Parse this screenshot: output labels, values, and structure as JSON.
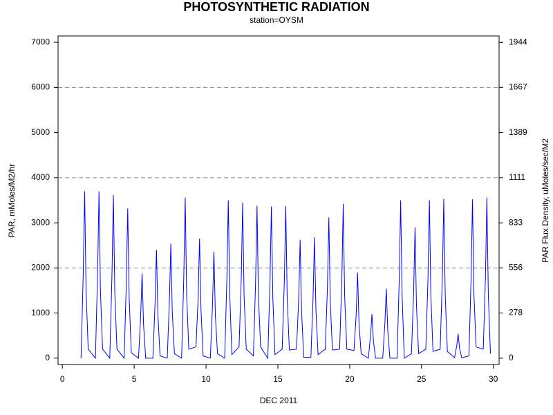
{
  "chart_data": {
    "type": "line",
    "title": "PHOTOSYNTHETIC RADIATION",
    "subtitle": "station=OYSM",
    "x_label": "DEC 2011",
    "y_label": "PAR, mMoles/M2/hr",
    "y2_label": "PAR Flux Density, uMoles/sec/M2",
    "color": "#0000ff",
    "xlim": [
      -0.3,
      30.4
    ],
    "xticks": [
      0,
      5,
      10,
      15,
      20,
      25,
      30
    ],
    "ylim": [
      -140,
      7140
    ],
    "yticks": [
      0,
      1000,
      2000,
      3000,
      4000,
      5000,
      6000,
      7000
    ],
    "y2lim": [
      -38.9,
      1983.3
    ],
    "y2ticks": [
      0,
      278,
      556,
      833,
      1111,
      1389,
      1667,
      1944
    ],
    "grid_y": [
      2000,
      4000,
      6000
    ],
    "x": [
      1.3,
      1.45,
      1.55,
      1.65,
      1.8,
      2.3,
      2.45,
      2.55,
      2.65,
      2.8,
      3.3,
      3.45,
      3.55,
      3.65,
      3.8,
      4.3,
      4.45,
      4.55,
      4.65,
      4.8,
      5.3,
      5.45,
      5.55,
      5.65,
      5.8,
      6.3,
      6.45,
      6.55,
      6.65,
      6.8,
      7.3,
      7.45,
      7.55,
      7.65,
      7.8,
      8.3,
      8.45,
      8.55,
      8.65,
      8.8,
      9.3,
      9.45,
      9.55,
      9.65,
      9.8,
      10.3,
      10.45,
      10.55,
      10.65,
      10.8,
      11.3,
      11.45,
      11.55,
      11.65,
      11.8,
      12.3,
      12.45,
      12.55,
      12.65,
      12.8,
      13.3,
      13.45,
      13.55,
      13.65,
      13.8,
      14.3,
      14.45,
      14.55,
      14.65,
      14.8,
      15.3,
      15.45,
      15.55,
      15.65,
      15.8,
      16.3,
      16.45,
      16.55,
      16.65,
      16.8,
      17.3,
      17.45,
      17.55,
      17.65,
      17.8,
      18.3,
      18.45,
      18.55,
      18.65,
      18.8,
      19.3,
      19.45,
      19.55,
      19.65,
      19.8,
      20.3,
      20.45,
      20.55,
      20.65,
      20.8,
      21.3,
      21.45,
      21.55,
      21.65,
      21.8,
      22.3,
      22.45,
      22.55,
      22.65,
      22.8,
      23.3,
      23.45,
      23.55,
      23.65,
      23.8,
      24.3,
      24.45,
      24.55,
      24.65,
      24.8,
      25.3,
      25.45,
      25.55,
      25.65,
      25.8,
      26.3,
      26.45,
      26.55,
      26.65,
      26.8,
      27.3,
      27.45,
      27.55,
      27.65,
      27.8,
      28.3,
      28.45,
      28.55,
      28.65,
      28.8,
      29.3,
      29.45,
      29.55,
      29.65,
      29.8
    ],
    "values": [
      0,
      1850,
      3700,
      1480,
      200,
      0,
      1850,
      3700,
      1480,
      200,
      0,
      1810,
      3620,
      1450,
      200,
      0,
      1660,
      3320,
      1330,
      120,
      0,
      940,
      1880,
      750,
      0,
      0,
      1200,
      2400,
      960,
      50,
      0,
      1270,
      2540,
      1020,
      100,
      0,
      1780,
      3560,
      1420,
      200,
      250,
      1330,
      2650,
      1060,
      50,
      0,
      1180,
      2360,
      940,
      100,
      0,
      1750,
      3500,
      1400,
      80,
      250,
      1730,
      3450,
      1380,
      200,
      50,
      1690,
      3380,
      1350,
      250,
      0,
      1680,
      3360,
      1340,
      80,
      200,
      1690,
      3370,
      1350,
      180,
      200,
      1310,
      2620,
      1050,
      20,
      20,
      1340,
      2680,
      1070,
      80,
      200,
      1560,
      3120,
      1250,
      180,
      200,
      1710,
      3420,
      1370,
      200,
      170,
      950,
      1900,
      760,
      100,
      0,
      490,
      980,
      390,
      0,
      0,
      770,
      1540,
      620,
      0,
      0,
      1750,
      3500,
      1400,
      0,
      100,
      1450,
      2900,
      1160,
      100,
      200,
      1750,
      3500,
      1400,
      150,
      200,
      1770,
      3530,
      1410,
      150,
      10,
      270,
      540,
      220,
      10,
      50,
      1760,
      3520,
      1410,
      250,
      200,
      1780,
      3560,
      1420,
      100
    ]
  }
}
